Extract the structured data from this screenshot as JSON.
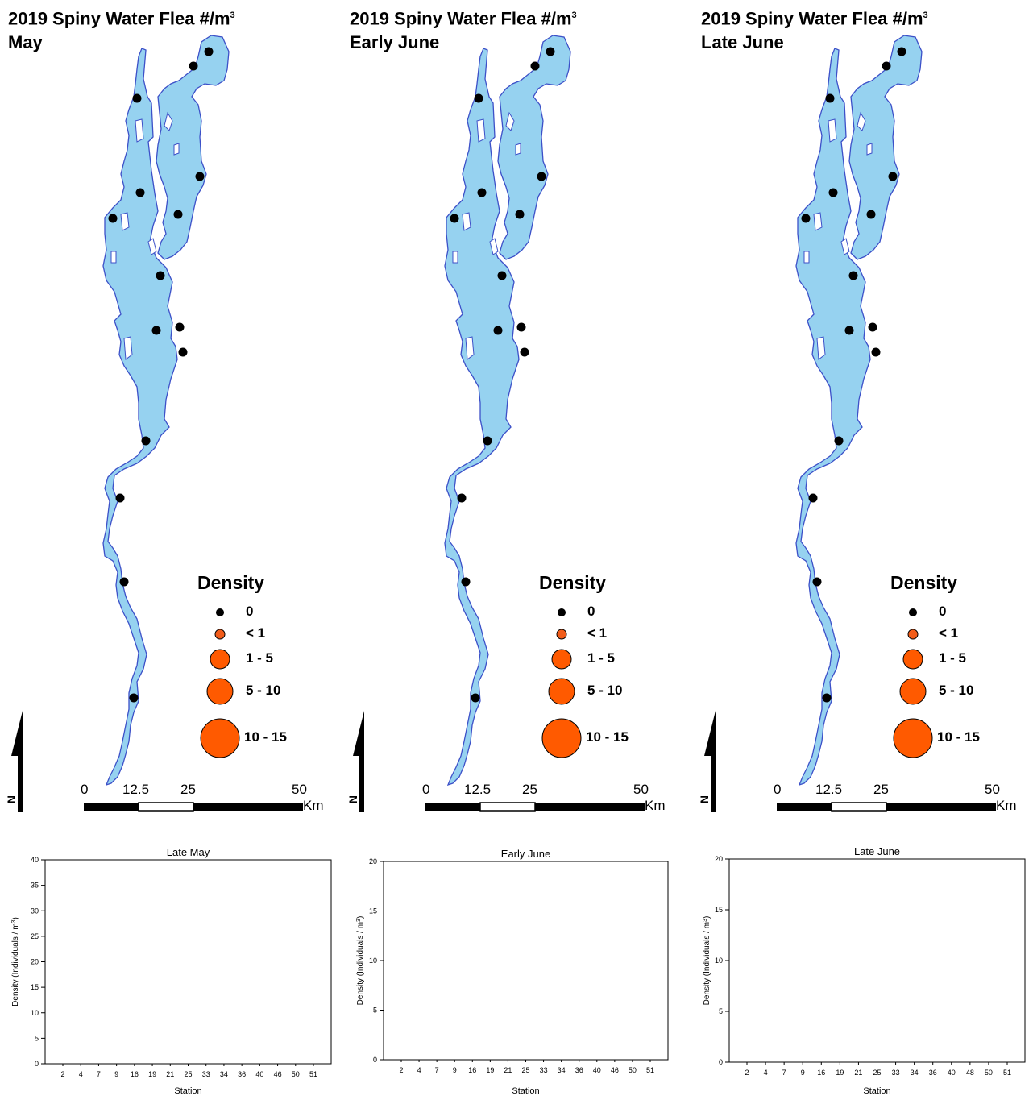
{
  "panels": [
    {
      "title_line1": "2019 Spiny Water Flea #/m",
      "title_sup": "3",
      "title_line2": "May"
    },
    {
      "title_line1": "2019 Spiny Water Flea #/m",
      "title_sup": "3",
      "title_line2": "Early June"
    },
    {
      "title_line1": "2019 Spiny Water Flea #/m",
      "title_sup": "3",
      "title_line2": "Late June"
    }
  ],
  "legend": {
    "title": "Density",
    "items": [
      {
        "label": "0",
        "color": "#000000"
      },
      {
        "label": "< 1",
        "color": "#f25c19"
      },
      {
        "label": "1 - 5",
        "color": "#ff5a00"
      },
      {
        "label": "5 - 10",
        "color": "#ff5a00"
      },
      {
        "label": "10 - 15",
        "color": "#ff5a00"
      }
    ]
  },
  "north_label": "N",
  "scale": {
    "ticks": [
      "0",
      "12.5",
      "25",
      "50"
    ],
    "unit": "Km"
  },
  "colors": {
    "water": "#96d2f0",
    "shore": "#3c50c8",
    "station_zero": "#000000",
    "density": "#ff5a00"
  },
  "chart_data": [
    {
      "type": "bar",
      "title": "Late May",
      "xlabel": "Station",
      "ylabel": "Density (Individuals / m",
      "ylabel_sup": "3",
      "ylabel_close": ")",
      "categories": [
        "2",
        "4",
        "7",
        "9",
        "16",
        "19",
        "21",
        "25",
        "33",
        "34",
        "36",
        "40",
        "46",
        "50",
        "51"
      ],
      "values": [
        0,
        0,
        0,
        0,
        0,
        0,
        0,
        0,
        0,
        0,
        0,
        0,
        0,
        0,
        0
      ],
      "ylim": [
        0,
        40
      ],
      "yticks": [
        "0",
        "5",
        "10",
        "15",
        "20",
        "25",
        "30",
        "35",
        "40"
      ]
    },
    {
      "type": "bar",
      "title": "Early June",
      "xlabel": "Station",
      "ylabel": "Density (Individuals / m",
      "ylabel_sup": "3",
      "ylabel_close": ")",
      "categories": [
        "2",
        "4",
        "7",
        "9",
        "16",
        "19",
        "21",
        "25",
        "33",
        "34",
        "36",
        "40",
        "46",
        "50",
        "51"
      ],
      "values": [
        0,
        0,
        0,
        0,
        0,
        0,
        0,
        0,
        0,
        0,
        0,
        0,
        0,
        0,
        0
      ],
      "ylim": [
        0,
        20
      ],
      "yticks": [
        "0",
        "5",
        "10",
        "15",
        "20"
      ]
    },
    {
      "type": "bar",
      "title": "Late June",
      "xlabel": "Station",
      "ylabel": "Density (Individuals / m",
      "ylabel_sup": "3",
      "ylabel_close": ")",
      "categories": [
        "2",
        "4",
        "7",
        "9",
        "16",
        "19",
        "21",
        "25",
        "33",
        "34",
        "36",
        "40",
        "48",
        "50",
        "51"
      ],
      "values": [
        0,
        0,
        0,
        0,
        0,
        0,
        0,
        0,
        0,
        0,
        0,
        0,
        0,
        0,
        0
      ],
      "ylim": [
        0,
        20
      ],
      "yticks": [
        "0",
        "5",
        "10",
        "15",
        "20"
      ]
    }
  ]
}
